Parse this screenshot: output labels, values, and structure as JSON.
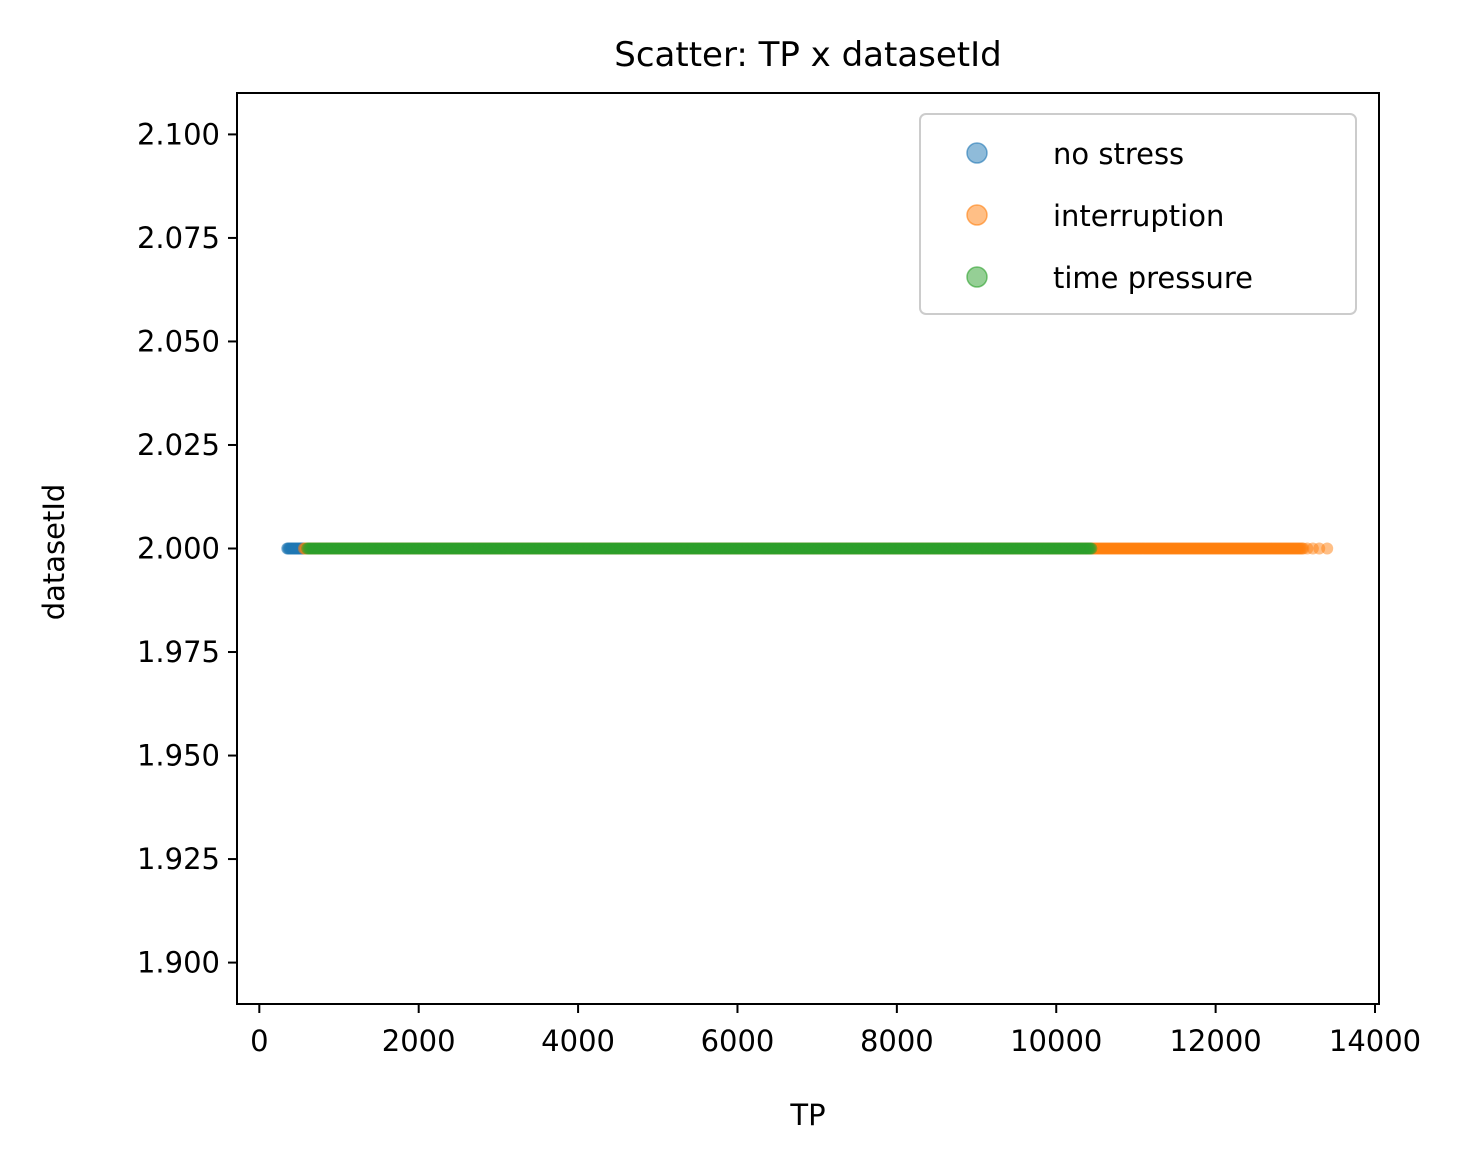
{
  "chart_data": {
    "type": "scatter",
    "title": "Scatter: TP x datasetId",
    "xlabel": "TP",
    "ylabel": "datasetId",
    "xlim": [
      -280,
      14050
    ],
    "ylim": [
      1.89,
      2.11
    ],
    "xticks": [
      0,
      2000,
      4000,
      6000,
      8000,
      10000,
      12000,
      14000
    ],
    "xtick_labels": [
      "0",
      "2000",
      "4000",
      "6000",
      "8000",
      "10000",
      "12000",
      "14000"
    ],
    "yticks": [
      1.9,
      1.925,
      1.95,
      1.975,
      2.0,
      2.025,
      2.05,
      2.075,
      2.1
    ],
    "ytick_labels": [
      "1.900",
      "1.925",
      "1.950",
      "1.975",
      "2.000",
      "2.025",
      "2.050",
      "2.075",
      "2.100"
    ],
    "grid": false,
    "legend_position": "top-right",
    "series": [
      {
        "name": "no stress",
        "color": "#1f77b4",
        "y": 2.0,
        "x_range": [
          350,
          560
        ],
        "step": 10,
        "sparse_tail": []
      },
      {
        "name": "interruption",
        "color": "#ff7f0e",
        "y": 2.0,
        "x_range": [
          560,
          13100
        ],
        "step": 15,
        "sparse_tail": [
          13150,
          13220,
          13300,
          13400
        ]
      },
      {
        "name": "time pressure",
        "color": "#2ca02c",
        "y": 2.0,
        "x_range": [
          600,
          10450
        ],
        "step": 15,
        "sparse_tail": []
      }
    ]
  }
}
